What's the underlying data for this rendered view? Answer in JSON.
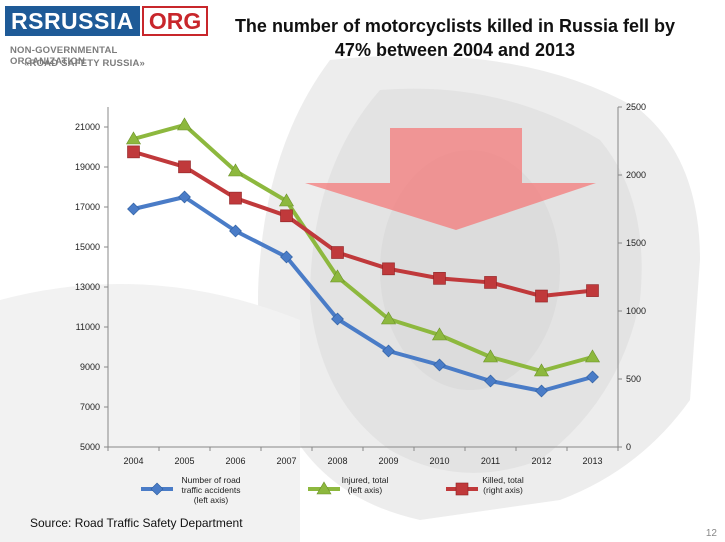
{
  "header": {
    "logo_left": "RSRUSSIA",
    "logo_right": "ORG",
    "org_line_1": "NON-GOVERNMENTAL ORGANIZATION",
    "org_line_2": "«ROAD SAFETY RUSSIA»",
    "title_line_1": "The number of motorcyclists killed in Russia fell by",
    "title_line_2": "47%  between 2004 and 2013"
  },
  "footer": {
    "source": "Source: Road Traffic Safety Department",
    "page_number": "12"
  },
  "colors": {
    "logo_blue": "#1e5a97",
    "logo_red": "#c8262b",
    "accidents": "#4a7cc7",
    "injured": "#8db83e",
    "killed": "#c0393b",
    "arrow": "#f47b7b"
  },
  "chart_data": {
    "type": "line",
    "categories": [
      "2004",
      "2005",
      "2006",
      "2007",
      "2008",
      "2009",
      "2010",
      "2011",
      "2012",
      "2013"
    ],
    "grid": false,
    "legend_position": "bottom",
    "left_axis": {
      "ylim": [
        5000,
        22000
      ],
      "ticks": [
        "5000",
        "7000",
        "9000",
        "11000",
        "13000",
        "15000",
        "17000",
        "19000",
        "21000"
      ]
    },
    "right_axis": {
      "ylim": [
        0,
        2500
      ],
      "ticks": [
        "0",
        "500",
        "1000",
        "1500",
        "2000",
        "2500"
      ]
    },
    "series": [
      {
        "name": "Number of road traffic accidents (left axis)",
        "legend_lines": [
          "Number of road",
          "traffic accidents",
          "(left axis)"
        ],
        "axis": "left",
        "marker": "diamond",
        "color": "#4a7cc7",
        "values": [
          16900,
          17500,
          15800,
          14500,
          11400,
          9800,
          9100,
          8300,
          7800,
          8500
        ]
      },
      {
        "name": "Injured, total (left axis)",
        "legend_lines": [
          "Injured, total",
          "(left axis)"
        ],
        "axis": "left",
        "marker": "triangle",
        "color": "#8db83e",
        "values": [
          20400,
          21100,
          18800,
          17300,
          13500,
          11400,
          10600,
          9500,
          8800,
          9500
        ]
      },
      {
        "name": "Killed, total (right axis)",
        "legend_lines": [
          "Killed, total",
          "(right axis)"
        ],
        "axis": "right",
        "marker": "square",
        "color": "#c0393b",
        "values": [
          2170,
          2060,
          1830,
          1700,
          1430,
          1310,
          1240,
          1210,
          1110,
          1150
        ]
      }
    ]
  }
}
